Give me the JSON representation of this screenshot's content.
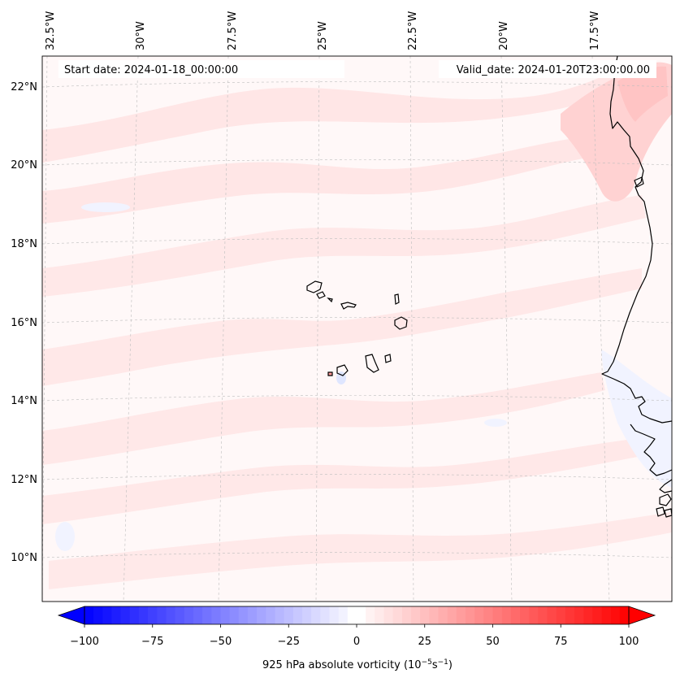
{
  "map": {
    "start_date": "Start date: 2024-01-18_00:00:00",
    "valid_date": "Valid_date: 2024-01-20T23:00:00.00",
    "lon_labels": [
      "32.5°W",
      "30°W",
      "27.5°W",
      "25°W",
      "22.5°W",
      "20°W",
      "17.5°W"
    ],
    "lat_labels": [
      "22°N",
      "20°N",
      "18°N",
      "16°N",
      "14°N",
      "12°N",
      "10°N"
    ],
    "colorbar": {
      "title_prefix": "925 hPa absolute vorticity (10",
      "exp1": "−5",
      "unit_mid": "s",
      "exp2": "−1",
      "title_suffix": ")",
      "ticks": [
        "−100",
        "−75",
        "−50",
        "−25",
        "0",
        "25",
        "50",
        "75",
        "100"
      ],
      "min": -100,
      "max": 100,
      "levels": 60,
      "negative_color": "#0000ff",
      "positive_color": "#ff0000"
    },
    "colors": {
      "background_field": "#fff8f8",
      "positive_band": "#ffe3e3",
      "strong_positive": "#ffc8c8",
      "weak_negative": "#f4f6ff",
      "coastline": "#000000",
      "gridline": "#bdbdbd"
    }
  }
}
